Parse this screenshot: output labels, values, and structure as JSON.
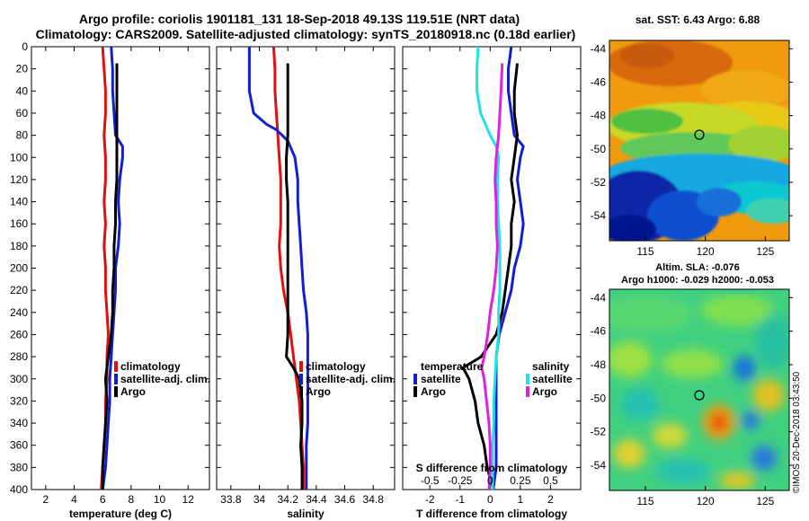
{
  "title": {
    "line1": "Argo profile: coriolis 1901181_131 18-Sep-2018 49.13S 119.51E (NRT data)",
    "line2": "Climatology: CARS2009. Satellite-adjusted climatology: synTS_20180918.nc (0.18d earlier)"
  },
  "colors": {
    "climatology": "#e01010",
    "satellite": "#1020d0",
    "argo": "#000000",
    "sal_satellite": "#20e0e8",
    "sal_argo": "#e020e0"
  },
  "watermark": "©IMOS 20-Dec-2018 03:43:50",
  "chart_data": [
    {
      "type": "line",
      "name": "temperature-profile",
      "xlabel": "temperature (deg C)",
      "ylabel": "depth",
      "xlim": [
        1,
        13.5
      ],
      "ylim": [
        400,
        0
      ],
      "xticks": [
        2,
        4,
        6,
        8,
        10,
        12
      ],
      "yticks": [
        0,
        20,
        40,
        60,
        80,
        100,
        120,
        140,
        160,
        180,
        200,
        220,
        240,
        260,
        280,
        300,
        320,
        340,
        360,
        380,
        400
      ],
      "legend": {
        "position": "bottom-center",
        "entries": [
          "climatology",
          "satellite-adj. clim.",
          "Argo"
        ]
      },
      "series": [
        {
          "name": "climatology",
          "color": "#e01010",
          "points": [
            [
              6.0,
              0
            ],
            [
              6.1,
              20
            ],
            [
              6.2,
              40
            ],
            [
              6.2,
              60
            ],
            [
              6.1,
              80
            ],
            [
              6.2,
              100
            ],
            [
              6.2,
              120
            ],
            [
              6.1,
              140
            ],
            [
              6.2,
              160
            ],
            [
              6.1,
              180
            ],
            [
              6.2,
              200
            ],
            [
              6.2,
              220
            ],
            [
              6.3,
              240
            ],
            [
              6.4,
              260
            ],
            [
              6.3,
              280
            ],
            [
              6.3,
              300
            ],
            [
              6.2,
              320
            ],
            [
              6.2,
              340
            ],
            [
              6.1,
              360
            ],
            [
              6.0,
              380
            ],
            [
              5.9,
              400
            ]
          ]
        },
        {
          "name": "satellite-adj. clim.",
          "color": "#1020d0",
          "points": [
            [
              6.6,
              0
            ],
            [
              6.7,
              20
            ],
            [
              6.7,
              40
            ],
            [
              6.8,
              60
            ],
            [
              6.9,
              80
            ],
            [
              7.4,
              90
            ],
            [
              7.4,
              100
            ],
            [
              7.2,
              120
            ],
            [
              7.1,
              140
            ],
            [
              7.2,
              160
            ],
            [
              7.1,
              180
            ],
            [
              6.9,
              200
            ],
            [
              6.9,
              220
            ],
            [
              6.8,
              240
            ],
            [
              6.7,
              260
            ],
            [
              6.6,
              280
            ],
            [
              6.5,
              300
            ],
            [
              6.5,
              320
            ],
            [
              6.4,
              340
            ],
            [
              6.3,
              360
            ],
            [
              6.2,
              380
            ],
            [
              6.0,
              400
            ]
          ]
        },
        {
          "name": "Argo",
          "color": "#000000",
          "points": [
            [
              7.0,
              15
            ],
            [
              7.0,
              40
            ],
            [
              7.0,
              60
            ],
            [
              7.0,
              80
            ],
            [
              7.0,
              100
            ],
            [
              7.0,
              120
            ],
            [
              6.9,
              140
            ],
            [
              6.9,
              160
            ],
            [
              6.8,
              180
            ],
            [
              6.8,
              200
            ],
            [
              6.7,
              220
            ],
            [
              6.7,
              240
            ],
            [
              6.6,
              260
            ],
            [
              6.4,
              280
            ],
            [
              6.2,
              300
            ],
            [
              6.3,
              320
            ],
            [
              6.2,
              340
            ],
            [
              6.1,
              360
            ],
            [
              6.0,
              380
            ],
            [
              6.0,
              400
            ]
          ]
        }
      ]
    },
    {
      "type": "line",
      "name": "salinity-profile",
      "xlabel": "salinity",
      "ylabel": "depth",
      "xlim": [
        33.7,
        34.95
      ],
      "ylim": [
        400,
        0
      ],
      "xticks": [
        33.8,
        34.0,
        34.2,
        34.4,
        34.6,
        34.8
      ],
      "xticklabels": [
        "33.8",
        "34",
        "34.2",
        "34.4",
        "34.6",
        "34.8"
      ],
      "legend": {
        "position": "bottom-center",
        "entries": [
          "climatology",
          "satellite-adj. clim.",
          "Argo"
        ]
      },
      "series": [
        {
          "name": "climatology",
          "color": "#e01010",
          "points": [
            [
              34.1,
              0
            ],
            [
              34.11,
              20
            ],
            [
              34.11,
              40
            ],
            [
              34.12,
              60
            ],
            [
              34.13,
              80
            ],
            [
              34.14,
              100
            ],
            [
              34.15,
              120
            ],
            [
              34.15,
              140
            ],
            [
              34.15,
              160
            ],
            [
              34.14,
              180
            ],
            [
              34.15,
              200
            ],
            [
              34.17,
              220
            ],
            [
              34.2,
              240
            ],
            [
              34.22,
              260
            ],
            [
              34.24,
              280
            ],
            [
              34.26,
              300
            ],
            [
              34.28,
              320
            ],
            [
              34.29,
              340
            ],
            [
              34.3,
              360
            ],
            [
              34.31,
              380
            ],
            [
              34.31,
              400
            ]
          ]
        },
        {
          "name": "satellite-adj. clim.",
          "color": "#1020d0",
          "points": [
            [
              33.93,
              0
            ],
            [
              33.93,
              20
            ],
            [
              33.93,
              40
            ],
            [
              33.96,
              60
            ],
            [
              34.05,
              70
            ],
            [
              34.12,
              75
            ],
            [
              34.2,
              85
            ],
            [
              34.25,
              100
            ],
            [
              34.27,
              120
            ],
            [
              34.27,
              140
            ],
            [
              34.28,
              160
            ],
            [
              34.29,
              180
            ],
            [
              34.3,
              200
            ],
            [
              34.31,
              220
            ],
            [
              34.33,
              240
            ],
            [
              34.34,
              260
            ],
            [
              34.34,
              280
            ],
            [
              34.34,
              300
            ],
            [
              34.34,
              320
            ],
            [
              34.34,
              340
            ],
            [
              34.33,
              360
            ],
            [
              34.33,
              380
            ],
            [
              34.33,
              400
            ]
          ]
        },
        {
          "name": "Argo",
          "color": "#000000",
          "points": [
            [
              34.2,
              15
            ],
            [
              34.2,
              40
            ],
            [
              34.2,
              60
            ],
            [
              34.2,
              80
            ],
            [
              34.19,
              100
            ],
            [
              34.19,
              120
            ],
            [
              34.2,
              140
            ],
            [
              34.2,
              160
            ],
            [
              34.2,
              180
            ],
            [
              34.2,
              200
            ],
            [
              34.2,
              220
            ],
            [
              34.2,
              240
            ],
            [
              34.2,
              260
            ],
            [
              34.19,
              280
            ],
            [
              34.24,
              290
            ],
            [
              34.28,
              300
            ],
            [
              34.3,
              320
            ],
            [
              34.3,
              340
            ],
            [
              34.29,
              360
            ],
            [
              34.3,
              380
            ],
            [
              34.3,
              400
            ]
          ]
        }
      ]
    },
    {
      "type": "line",
      "name": "difference-from-climatology",
      "xlabel": "T difference from climatology",
      "top_xlabel": "S difference from climatology",
      "ylabel": "depth",
      "xlim": [
        -2.9,
        3.0
      ],
      "ylim": [
        400,
        0
      ],
      "xticks": [
        -2,
        -1,
        0,
        1,
        2
      ],
      "s_xticklabels": [
        "-0.5",
        "-0.25",
        "0",
        "0.25",
        "0.5"
      ],
      "legend": {
        "position": "bottom",
        "temperature_title": "temperature",
        "salinity_title": "salinity",
        "entries": [
          "satellite",
          "Argo"
        ]
      },
      "series": [
        {
          "name": "temperature satellite",
          "color": "#1020d0",
          "points": [
            [
              0.7,
              0
            ],
            [
              0.6,
              20
            ],
            [
              0.6,
              40
            ],
            [
              0.7,
              60
            ],
            [
              0.8,
              80
            ],
            [
              1.1,
              90
            ],
            [
              1.0,
              100
            ],
            [
              0.9,
              120
            ],
            [
              1.0,
              140
            ],
            [
              1.1,
              160
            ],
            [
              1.0,
              180
            ],
            [
              0.8,
              200
            ],
            [
              0.7,
              220
            ],
            [
              0.5,
              240
            ],
            [
              0.3,
              260
            ],
            [
              0.2,
              280
            ],
            [
              0.2,
              300
            ],
            [
              0.2,
              320
            ],
            [
              0.2,
              340
            ],
            [
              0.2,
              360
            ],
            [
              0.2,
              380
            ],
            [
              0.1,
              400
            ]
          ]
        },
        {
          "name": "temperature Argo",
          "color": "#000000",
          "points": [
            [
              0.9,
              15
            ],
            [
              0.8,
              40
            ],
            [
              0.8,
              60
            ],
            [
              0.9,
              80
            ],
            [
              0.8,
              100
            ],
            [
              0.7,
              120
            ],
            [
              0.8,
              140
            ],
            [
              0.7,
              160
            ],
            [
              0.7,
              180
            ],
            [
              0.6,
              200
            ],
            [
              0.5,
              220
            ],
            [
              0.4,
              240
            ],
            [
              0.2,
              260
            ],
            [
              -0.3,
              280
            ],
            [
              -0.9,
              290
            ],
            [
              -0.7,
              300
            ],
            [
              -0.5,
              320
            ],
            [
              -0.4,
              340
            ],
            [
              -0.2,
              360
            ],
            [
              -0.1,
              380
            ],
            [
              0.1,
              400
            ]
          ]
        },
        {
          "name": "salinity satellite",
          "color": "#20e0e8",
          "points": [
            [
              -0.1,
              0
            ],
            [
              -0.11,
              20
            ],
            [
              -0.11,
              40
            ],
            [
              -0.08,
              60
            ],
            [
              -0.04,
              70
            ],
            [
              0.0,
              80
            ],
            [
              0.05,
              90
            ],
            [
              0.07,
              100
            ],
            [
              0.06,
              120
            ],
            [
              0.06,
              140
            ],
            [
              0.07,
              160
            ],
            [
              0.08,
              180
            ],
            [
              0.08,
              200
            ],
            [
              0.08,
              220
            ],
            [
              0.07,
              240
            ],
            [
              0.07,
              260
            ],
            [
              0.05,
              280
            ],
            [
              0.04,
              300
            ],
            [
              0.03,
              320
            ],
            [
              0.03,
              340
            ],
            [
              0.02,
              360
            ],
            [
              0.02,
              380
            ],
            [
              0.02,
              400
            ]
          ]
        },
        {
          "name": "salinity Argo",
          "color": "#e020e0",
          "points": [
            [
              0.1,
              15
            ],
            [
              0.09,
              40
            ],
            [
              0.08,
              60
            ],
            [
              0.07,
              80
            ],
            [
              0.05,
              100
            ],
            [
              0.04,
              120
            ],
            [
              0.05,
              140
            ],
            [
              0.05,
              160
            ],
            [
              0.06,
              180
            ],
            [
              0.05,
              200
            ],
            [
              0.03,
              220
            ],
            [
              0.0,
              240
            ],
            [
              -0.02,
              260
            ],
            [
              -0.05,
              280
            ],
            [
              -0.07,
              290
            ],
            [
              -0.05,
              300
            ],
            [
              -0.03,
              320
            ],
            [
              -0.01,
              340
            ],
            [
              0.0,
              360
            ],
            [
              0.0,
              380
            ],
            [
              -0.01,
              400
            ]
          ]
        }
      ]
    },
    {
      "type": "heatmap",
      "name": "sat-sst-map",
      "title": "sat. SST: 6.43 Argo: 6.88",
      "xlim": [
        112,
        127
      ],
      "ylim": [
        -55.5,
        -43.5
      ],
      "xticks": [
        115,
        120,
        125
      ],
      "yticks": [
        -44,
        -46,
        -48,
        -50,
        -52,
        -54
      ],
      "marker": {
        "lon": 119.51,
        "lat": -49.13
      }
    },
    {
      "type": "heatmap",
      "name": "altimetry-sla-map",
      "title": "Altim. SLA: -0.076",
      "subtitle": "Argo h1000: -0.029 h2000: -0.053",
      "xlim": [
        112,
        127
      ],
      "ylim": [
        -55.5,
        -43.5
      ],
      "xticks": [
        115,
        120,
        125
      ],
      "yticks": [
        -44,
        -46,
        -48,
        -50,
        -52,
        -54
      ],
      "marker": {
        "lon": 119.51,
        "lat": -49.13
      }
    }
  ]
}
